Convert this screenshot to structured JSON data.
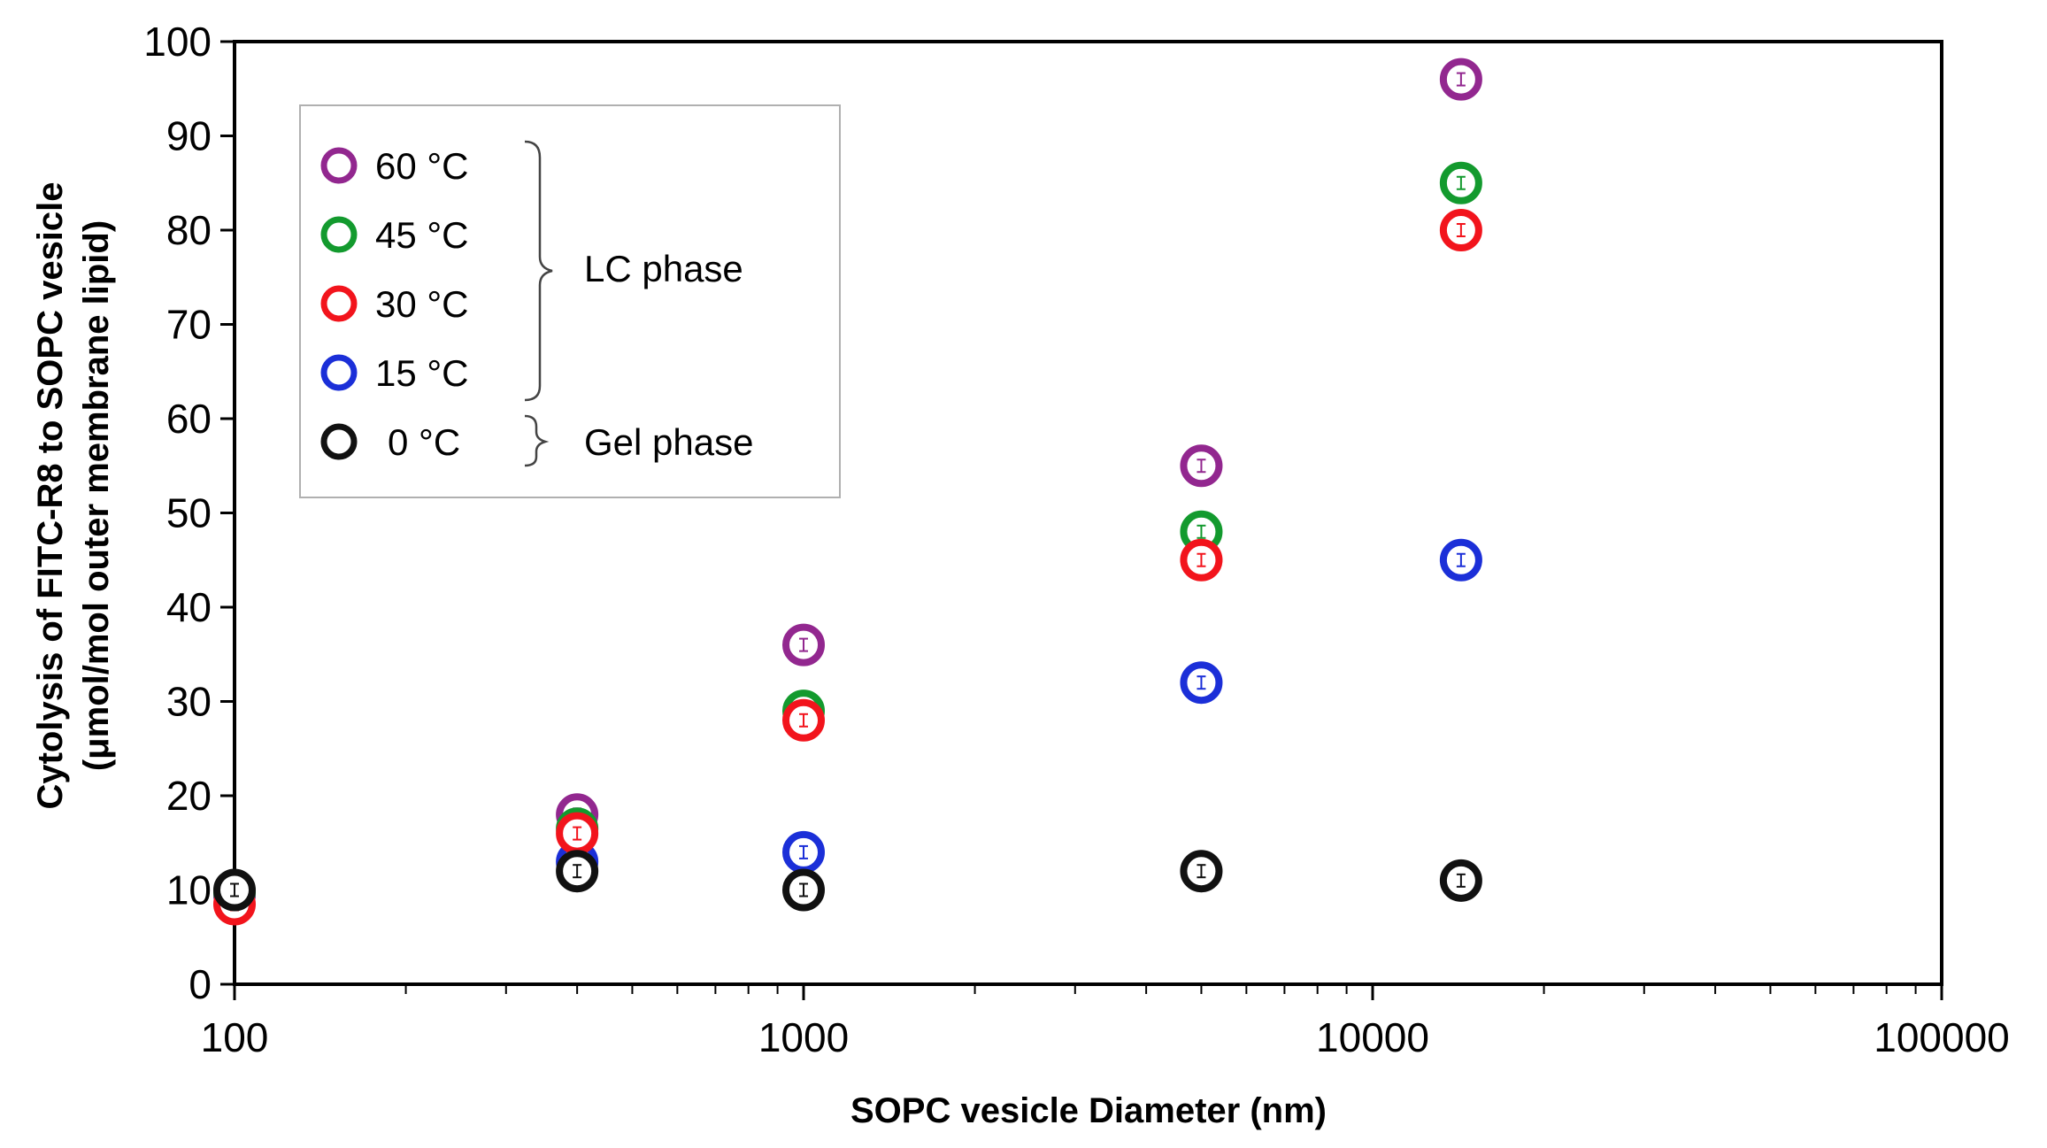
{
  "chart_data": {
    "type": "scatter",
    "xscale": "log",
    "xlim": [
      100,
      100000
    ],
    "ylim": [
      0,
      100
    ],
    "xticks": [
      "100",
      "1000",
      "10000",
      "100000"
    ],
    "yticks": [
      "0",
      "10",
      "20",
      "30",
      "40",
      "50",
      "60",
      "70",
      "80",
      "90",
      "100"
    ],
    "xlabel": "SOPC vesicle Diameter (nm)",
    "ylabel_line1": "Cytolysis of  FITC-R8 to SOPC vesicle",
    "ylabel_line2": "(μmol/mol outer membrane lipid)",
    "grid": false,
    "legend_position": "top-left",
    "phase_labels": {
      "lc": "LC phase",
      "gel": "Gel phase"
    },
    "series": [
      {
        "name": "60 °C",
        "color": "#92278F",
        "x": [
          100,
          400,
          1000,
          5000,
          14300
        ],
        "y": [
          9.5,
          18,
          36,
          55,
          96
        ]
      },
      {
        "name": "45 °C",
        "color": "#139A2E",
        "x": [
          100,
          400,
          1000,
          5000,
          14300
        ],
        "y": [
          9.8,
          16.5,
          29,
          48,
          85
        ]
      },
      {
        "name": "30 °C",
        "color": "#F2141C",
        "x": [
          100,
          400,
          1000,
          5000,
          14300
        ],
        "y": [
          8.5,
          16,
          28,
          45,
          80
        ]
      },
      {
        "name": "15 °C",
        "color": "#1B2FD8",
        "x": [
          100,
          400,
          1000,
          5000,
          14300
        ],
        "y": [
          9.5,
          13,
          14,
          32,
          45
        ]
      },
      {
        "name": "0 °C",
        "color": "#111111",
        "x": [
          100,
          400,
          1000,
          5000,
          14300
        ],
        "y": [
          10,
          12,
          10,
          12,
          11
        ]
      }
    ]
  }
}
